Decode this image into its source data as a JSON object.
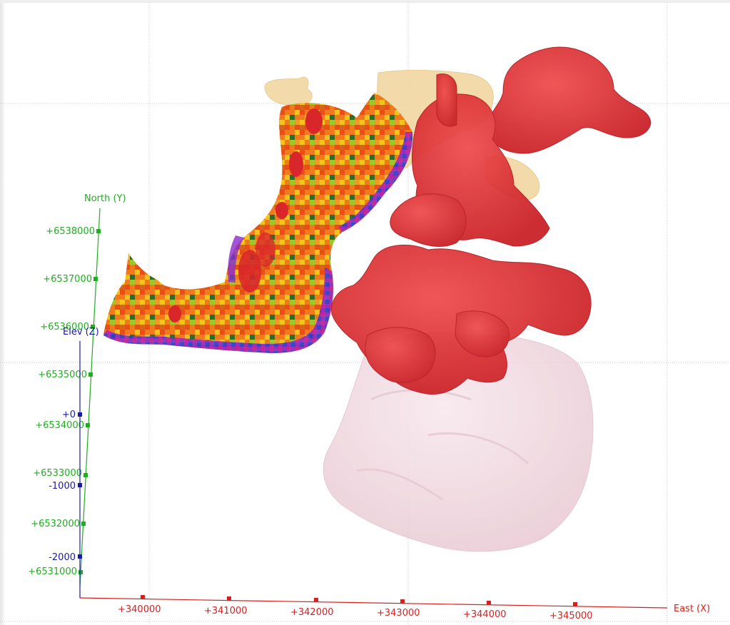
{
  "viewer": {
    "axes": {
      "east": {
        "label": "East (X)",
        "color": "#d62020",
        "ticks": [
          "+340000",
          "+341000",
          "+342000",
          "+343000",
          "+344000",
          "+345000"
        ]
      },
      "north": {
        "label": "North (Y)",
        "color": "#1fae1f",
        "ticks": [
          "+6538000",
          "+6537000",
          "+6536000",
          "+6535000",
          "+6534000",
          "+6533000",
          "+6532000",
          "+6531000"
        ]
      },
      "elev": {
        "label": "Elev (Z)",
        "color": "#1a1aa8",
        "ticks": [
          "+0",
          "-1000",
          "-2000"
        ]
      }
    },
    "colors": {
      "grid": "#c8c8c8",
      "ore_body": "#dc2b2b",
      "tan_body": "#f2d9a6",
      "pink_body": "#f0d6de",
      "block_model_base": "#f07a1c"
    }
  }
}
